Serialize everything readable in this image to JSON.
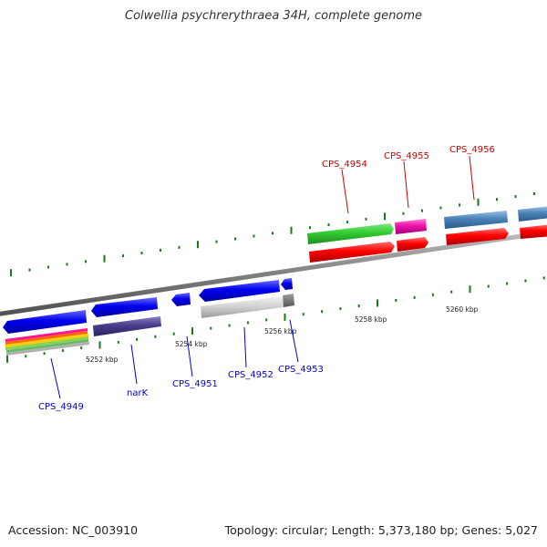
{
  "title": "Colwellia psychrerythraea 34H, complete genome",
  "footer": {
    "accession": "Accession: NC_003910",
    "summary": "Topology: circular; Length: 5,373,180 bp; Genes: 5,027"
  },
  "colors": {
    "forward_label": "#cc0000",
    "reverse_label": "#0000cc",
    "backbone": "#808080",
    "tick": "#1a7a1a"
  },
  "coordinate_labels": [
    "5252 kbp",
    "5254 kbp",
    "5256 kbp",
    "5258 kbp",
    "5260 kbp"
  ],
  "genes": [
    {
      "label": "CPS_4949",
      "strand": "reverse"
    },
    {
      "label": "narK",
      "strand": "reverse"
    },
    {
      "label": "CPS_4951",
      "strand": "reverse"
    },
    {
      "label": "CPS_4952",
      "strand": "reverse"
    },
    {
      "label": "CPS_4953",
      "strand": "reverse"
    },
    {
      "label": "CPS_4954",
      "strand": "forward"
    },
    {
      "label": "CPS_4955",
      "strand": "forward"
    },
    {
      "label": "CPS_4956",
      "strand": "forward"
    }
  ]
}
